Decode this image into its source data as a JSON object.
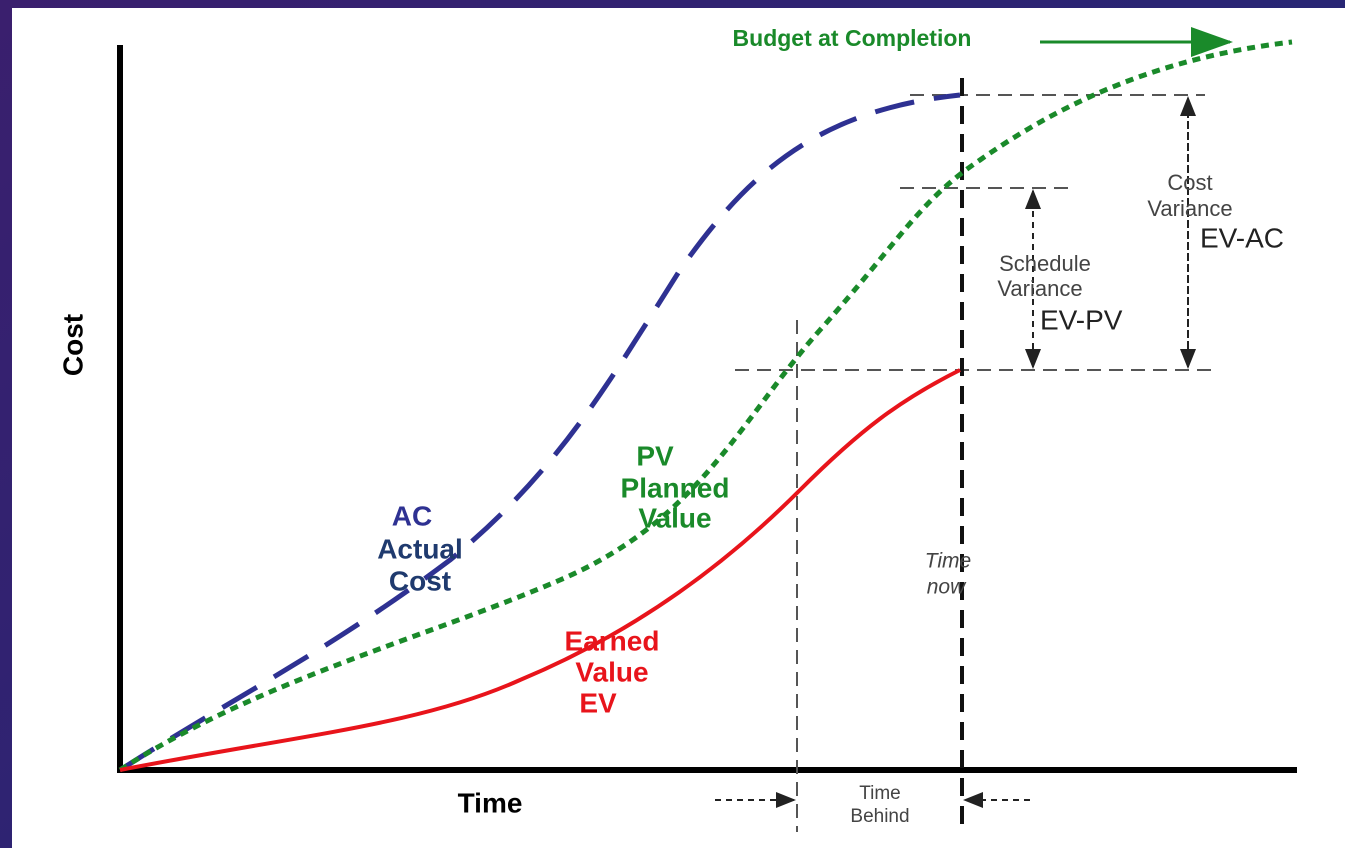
{
  "title": "Budget at Completion",
  "axes": {
    "y": "Cost",
    "x": "Time"
  },
  "curves": {
    "ac": {
      "code": "AC",
      "lines": [
        "Actual",
        "Cost"
      ]
    },
    "pv": {
      "code": "PV",
      "lines": [
        "Planned",
        "Value"
      ]
    },
    "ev": {
      "lines": [
        "Earned",
        "Value"
      ],
      "code": "EV"
    }
  },
  "annotations": {
    "cost_variance": {
      "lines": [
        "Cost",
        "Variance"
      ],
      "formula": "EV-AC"
    },
    "schedule_variance": {
      "lines": [
        "Schedule",
        "Variance"
      ],
      "formula": "EV-PV"
    },
    "time_now": [
      "Time",
      "now"
    ],
    "time_behind": [
      "Time",
      "Behind"
    ]
  }
}
